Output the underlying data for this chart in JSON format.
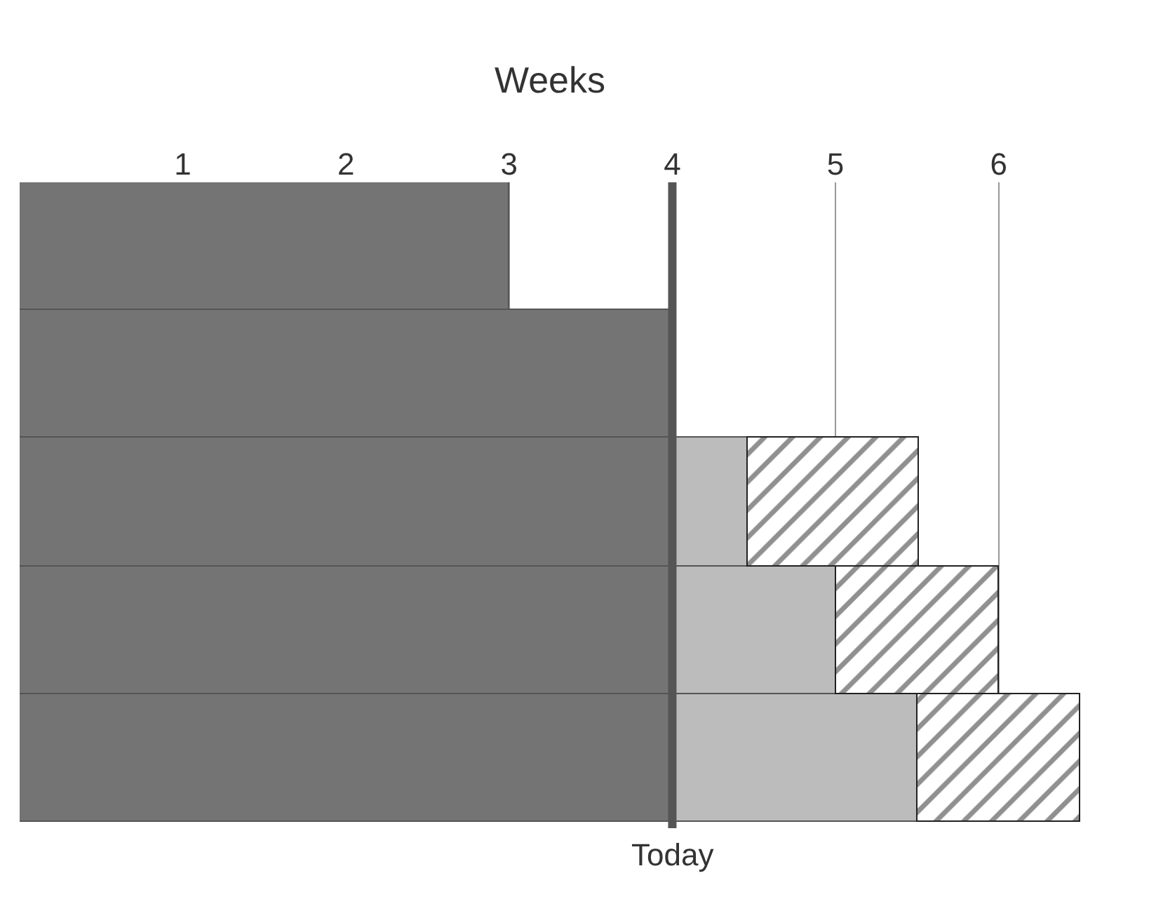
{
  "chart_data": {
    "type": "bar",
    "orientation": "horizontal",
    "stacked": true,
    "xlabel": "Weeks",
    "categories": [
      null,
      null,
      null,
      null,
      null
    ],
    "series": [
      {
        "color": "#747474",
        "values": [
          3,
          4,
          4,
          4,
          4
        ]
      },
      {
        "color": "#bcbcbc",
        "values": [
          null,
          null,
          0.46,
          1,
          1.5
        ]
      },
      {
        "color": "#222222",
        "values": [
          null,
          null,
          1.05,
          1,
          1
        ]
      }
    ],
    "xlim": [
      0,
      6.5
    ],
    "xticks": [
      1,
      2,
      3,
      4,
      5,
      6
    ],
    "ref_lines": [
      {
        "axis": "x",
        "value": 4,
        "label": "Today",
        "color": "#555555"
      }
    ],
    "grid": "x"
  }
}
